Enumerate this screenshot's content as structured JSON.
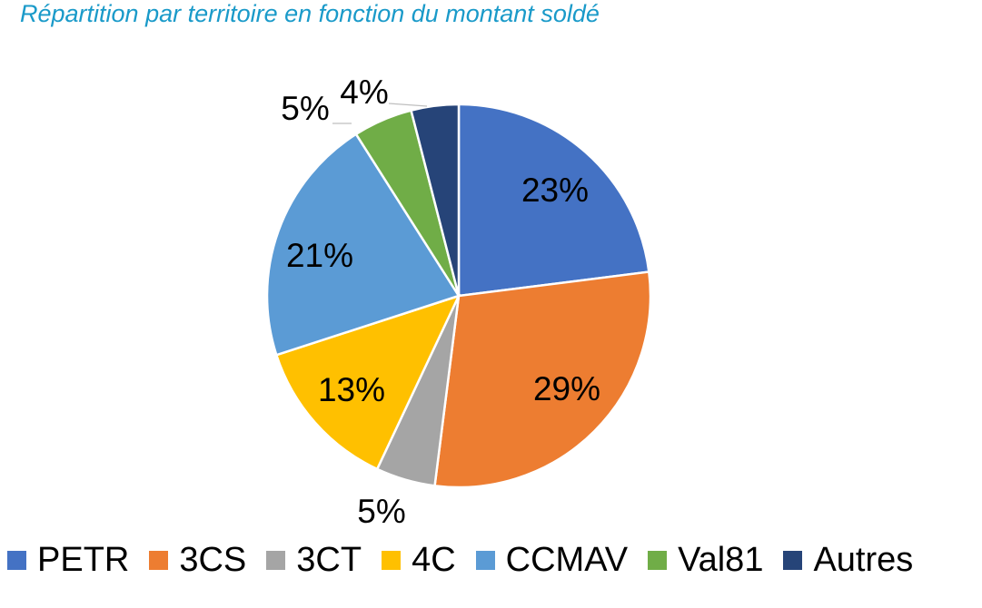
{
  "chart_data": {
    "type": "pie",
    "title": "Répartition par territoire en fonction du montant soldé",
    "categories": [
      "PETR",
      "3CS",
      "3CT",
      "4C",
      "CCMAV",
      "Val81",
      "Autres"
    ],
    "values": [
      23,
      29,
      5,
      13,
      21,
      5,
      4
    ],
    "data_labels": [
      "23%",
      "29%",
      "5%",
      "13%",
      "21%",
      "5%",
      "4%"
    ],
    "colors": [
      "#4472c4",
      "#ed7d31",
      "#a5a5a5",
      "#ffc000",
      "#5b9bd5",
      "#70ad47",
      "#264478"
    ],
    "start_angle_deg": 0,
    "direction": "clockwise",
    "legend_position": "bottom"
  }
}
